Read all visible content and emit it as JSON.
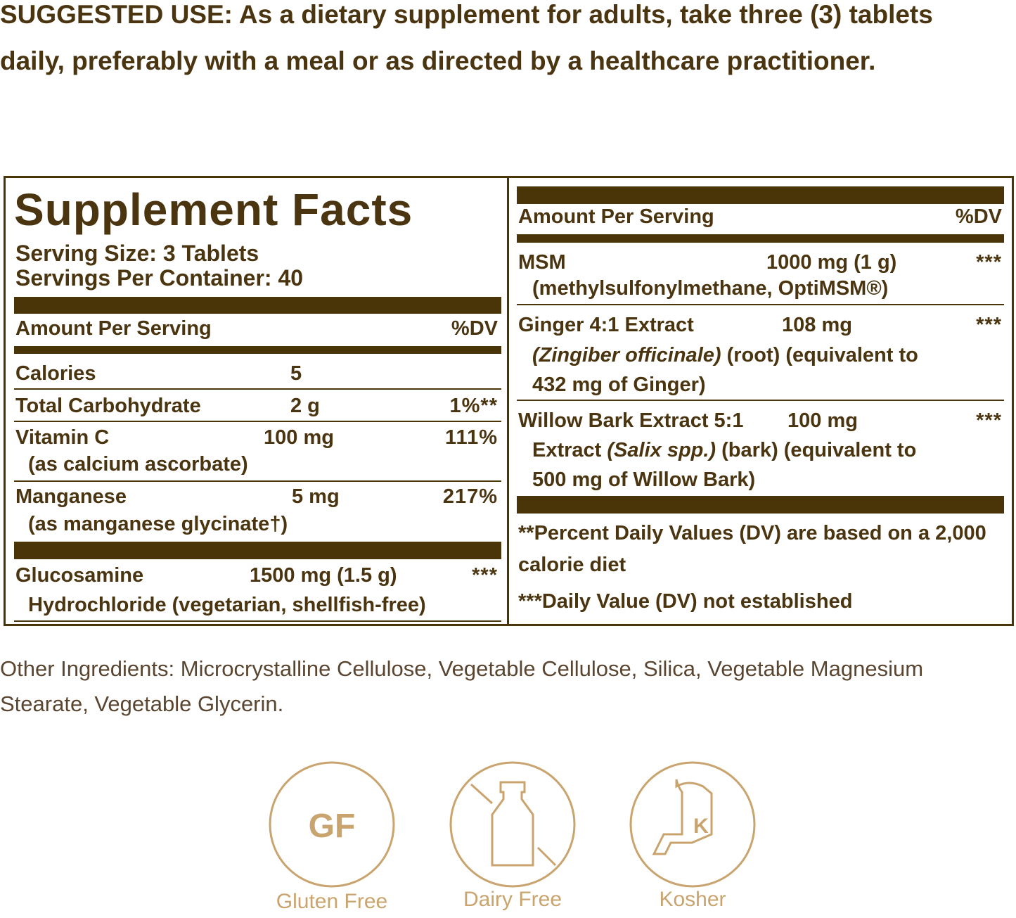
{
  "suggested_use": "SUGGESTED USE: As a dietary supplement for adults, take three (3) tablets daily, preferably with a meal or as directed by a healthcare practitioner.",
  "facts": {
    "title": "Supplement Facts",
    "serving_size": "Serving Size: 3 Tablets",
    "servings_per_container": "Servings Per Container: 40",
    "left_header": {
      "amount": "Amount Per Serving",
      "dv": "%DV"
    },
    "left_rows": [
      {
        "name": "Calories",
        "amount": "5"
      },
      {
        "name": "Total Carbohydrate",
        "amount": "2 g",
        "dv": "1%**"
      },
      {
        "name": "Vitamin C",
        "amount": "100 mg",
        "dv": "111%",
        "sub": [
          {
            "text": "(as calcium ascorbate)"
          }
        ]
      },
      {
        "name": "Manganese",
        "amount": "5 mg",
        "dv": "217%",
        "sub": [
          {
            "text": "(as manganese glycinate†)"
          }
        ]
      },
      {
        "name": "Glucosamine",
        "amount": "1500 mg (1.5 g)",
        "dv": "***",
        "sub": [
          {
            "text": "Hydrochloride (vegetarian, shellfish-free)"
          }
        ]
      }
    ],
    "right_header": {
      "amount": "Amount Per Serving",
      "dv": "%DV"
    },
    "right_rows": [
      {
        "name": "MSM",
        "amount": "1000 mg (1 g)",
        "dv": "***",
        "sub": [
          {
            "text": "(methylsulfonylmethane, OptiMSM®)"
          }
        ]
      },
      {
        "name": "Ginger 4:1 Extract",
        "amount": "108 mg",
        "dv": "***",
        "sub": [
          {
            "text": "(Zingiber officinale)",
            "italic": true
          },
          {
            "text": " (root) (equivalent to 432 mg of Ginger)"
          }
        ]
      },
      {
        "name": "Willow Bark Extract  5:1",
        "amount": "100 mg",
        "dv": "***",
        "sub": [
          {
            "text": "Extract "
          },
          {
            "text": "(Salix spp.)",
            "italic": true
          },
          {
            "text": " (bark) (equivalent to 500 mg of Willow Bark)"
          }
        ]
      }
    ],
    "footnotes": [
      "**Percent Daily Values (DV) are based on a 2,000 calorie diet",
      "***Daily Value (DV) not established"
    ]
  },
  "other_ingredients": "Other Ingredients: Microcrystalline Cellulose, Vegetable Cellulose, Silica, Vegetable Magnesium Stearate, Vegetable Glycerin.",
  "badges": [
    {
      "icon_text": "GF",
      "label": "Gluten Free"
    },
    {
      "label": "Dairy Free"
    },
    {
      "icon_text": "K",
      "label": "Kosher"
    }
  ]
}
